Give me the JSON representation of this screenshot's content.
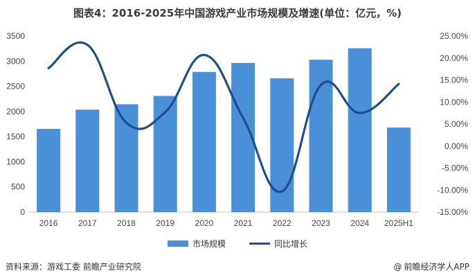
{
  "title": "图表4：2016-2025年中国游戏产业市场规模及增速(单位：亿元，%)",
  "colors": {
    "bar": "#4a90d9",
    "line": "#1f4e8c"
  },
  "chart_data": {
    "type": "bar",
    "categories": [
      "2016",
      "2017",
      "2018",
      "2019",
      "2020",
      "2021",
      "2022",
      "2023",
      "2024",
      "2025H1"
    ],
    "series": [
      {
        "name": "市场规模",
        "type": "bar",
        "axis": "left",
        "values": [
          1655,
          2036,
          2144,
          2309,
          2787,
          2965,
          2659,
          3029,
          3257,
          1680
        ]
      },
      {
        "name": "同比增长",
        "type": "line",
        "axis": "right",
        "smooth": true,
        "values": [
          17.7,
          23.0,
          5.3,
          7.7,
          20.7,
          6.4,
          -10.3,
          13.9,
          7.5,
          14.1
        ]
      }
    ],
    "y_left": {
      "min": 0,
      "max": 3500,
      "step": 500,
      "ticks": [
        "0",
        "500",
        "1000",
        "1500",
        "2000",
        "2500",
        "3000",
        "3500"
      ]
    },
    "y_right": {
      "min": -15,
      "max": 25,
      "step": 5,
      "ticks": [
        "-15.00%",
        "-10.00%",
        "-5.00%",
        "0.00%",
        "5.00%",
        "10.00%",
        "15.00%",
        "20.00%",
        "25.00%"
      ]
    },
    "grid": false,
    "legend_position": "bottom"
  },
  "footer": {
    "source": "资料来源：游戏工委 前瞻产业研究院",
    "brand": "前瞻经济学人APP",
    "brand_icon": "@"
  }
}
